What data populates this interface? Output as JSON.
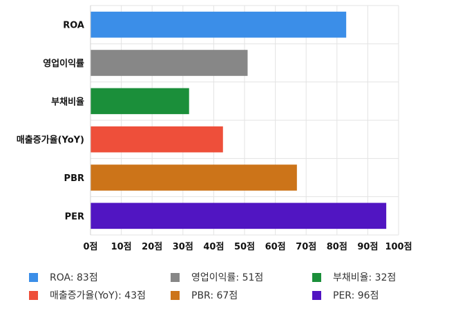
{
  "chart_data": {
    "type": "bar",
    "orientation": "horizontal",
    "categories": [
      "ROA",
      "영업이익률",
      "부채비율",
      "매출증가율(YoY)",
      "PBR",
      "PER"
    ],
    "values": [
      83,
      51,
      32,
      43,
      67,
      96
    ],
    "colors": [
      "#3b8ee8",
      "#878787",
      "#1b8f3a",
      "#ee4f3a",
      "#cc7419",
      "#5115c2"
    ],
    "xlim": [
      0,
      100
    ],
    "xticks": [
      0,
      10,
      20,
      30,
      40,
      50,
      60,
      70,
      80,
      90,
      100
    ],
    "tick_suffix": "점",
    "grid": true,
    "legend_position": "bottom",
    "legend": [
      {
        "label": "ROA: 83점",
        "color": "#3b8ee8"
      },
      {
        "label": "영업이익률: 51점",
        "color": "#878787"
      },
      {
        "label": "부채비율: 32점",
        "color": "#1b8f3a"
      },
      {
        "label": "매출증가율(YoY): 43점",
        "color": "#ee4f3a"
      },
      {
        "label": "PBR: 67점",
        "color": "#cc7419"
      },
      {
        "label": "PER: 96점",
        "color": "#5115c2"
      }
    ]
  }
}
